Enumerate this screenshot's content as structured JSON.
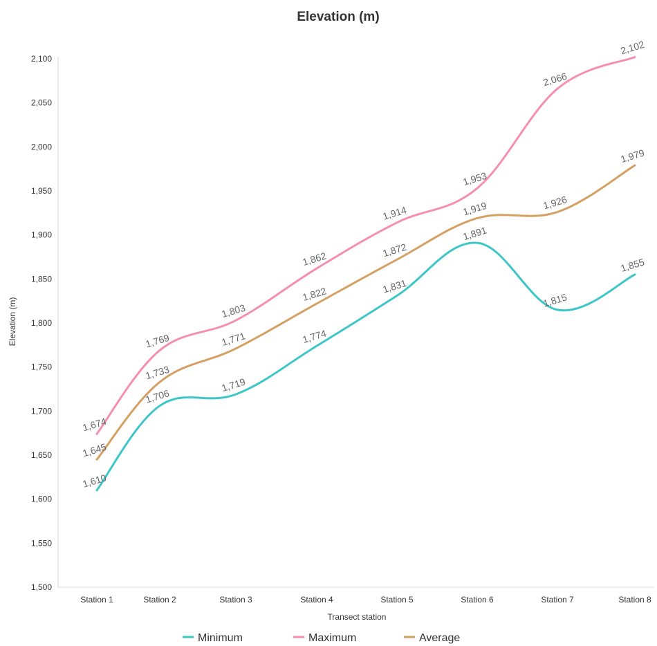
{
  "chart_data": {
    "type": "line",
    "title": "Elevation (m)",
    "xlabel": "Transect station",
    "ylabel": "Elevation (m)",
    "categories": [
      "Station 1",
      "Station 2",
      "Station 3",
      "Station 4",
      "Station 5",
      "Station 6",
      "Station 7",
      "Station 8"
    ],
    "ylim": [
      1500,
      2100
    ],
    "yticks": [
      1500,
      1550,
      1600,
      1650,
      1700,
      1750,
      1800,
      1850,
      1900,
      1950,
      2000,
      2050,
      2100
    ],
    "ytick_labels": [
      "1,500",
      "1,550",
      "1,600",
      "1,650",
      "1,700",
      "1,750",
      "1,800",
      "1,850",
      "1,900",
      "1,950",
      "2,000",
      "2,050",
      "2,100"
    ],
    "grid": false,
    "legend": "bottom",
    "series": [
      {
        "name": "Minimum",
        "color": "#3cc6c8",
        "values": [
          1610,
          1706,
          1719,
          1774,
          1831,
          1891,
          1815,
          1855
        ],
        "labels": [
          "1,610",
          "1,706",
          "1,719",
          "1,774",
          "1,831",
          "1,891",
          "1,815",
          "1,855"
        ]
      },
      {
        "name": "Maximum",
        "color": "#f48fb1",
        "values": [
          1674,
          1769,
          1803,
          1862,
          1914,
          1953,
          2066,
          2102
        ],
        "labels": [
          "1,674",
          "1,769",
          "1,803",
          "1,862",
          "1,914",
          "1,953",
          "2,066",
          "2,102"
        ]
      },
      {
        "name": "Average",
        "color": "#d4a063",
        "values": [
          1645,
          1733,
          1771,
          1822,
          1872,
          1919,
          1926,
          1979
        ],
        "labels": [
          "1,645",
          "1,733",
          "1,771",
          "1,822",
          "1,872",
          "1,919",
          "1,926",
          "1,979"
        ]
      }
    ]
  }
}
